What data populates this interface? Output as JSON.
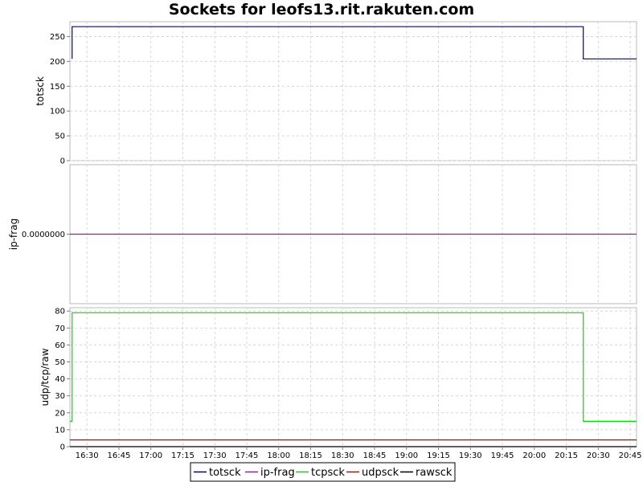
{
  "chart_data": {
    "type": "line",
    "title": "Sockets for leofs13.rit.rakuten.com",
    "x_tick_labels": [
      "16:30",
      "16:45",
      "17:00",
      "17:15",
      "17:30",
      "17:45",
      "18:00",
      "18:15",
      "18:30",
      "18:45",
      "19:00",
      "19:15",
      "19:30",
      "19:45",
      "20:00",
      "20:15",
      "20:30",
      "20:45"
    ],
    "x_range": [
      "16:22",
      "20:48"
    ],
    "grid": true,
    "legend_position": "bottom",
    "panels": [
      {
        "ylabel": "totsck",
        "ylim": [
          0,
          280
        ],
        "y_ticks": [
          0,
          50,
          100,
          150,
          200,
          250
        ],
        "y_tick_labels": [
          "0",
          "50",
          "100",
          "150",
          "200",
          "250"
        ],
        "series": [
          {
            "name": "totsck",
            "color": "#00008b",
            "points": [
              [
                "16:23",
                205
              ],
              [
                "16:23",
                270
              ],
              [
                "20:23",
                270
              ],
              [
                "20:23",
                205
              ],
              [
                "20:48",
                205
              ]
            ]
          }
        ]
      },
      {
        "ylabel": "ip-frag",
        "ylim": [
          -1,
          1
        ],
        "y_ticks": [
          0
        ],
        "y_tick_labels": [
          "0.0000000"
        ],
        "series": [
          {
            "name": "ip-frag",
            "color": "#c000c0",
            "points": [
              [
                "16:22",
                0
              ],
              [
                "20:48",
                0
              ]
            ]
          }
        ]
      },
      {
        "ylabel": "udp/tcp/raw",
        "ylim": [
          0,
          82
        ],
        "y_ticks": [
          0,
          10,
          20,
          30,
          40,
          50,
          60,
          70,
          80
        ],
        "y_tick_labels": [
          "0",
          "10",
          "20",
          "30",
          "40",
          "50",
          "60",
          "70",
          "80"
        ],
        "series": [
          {
            "name": "tcpsck",
            "color": "#00dd00",
            "points": [
              [
                "16:22",
                15
              ],
              [
                "16:23",
                15
              ],
              [
                "16:23",
                79
              ],
              [
                "20:23",
                79
              ],
              [
                "20:23",
                15
              ],
              [
                "20:48",
                15
              ]
            ]
          },
          {
            "name": "udpsck",
            "color": "#cc0000",
            "points": [
              [
                "16:22",
                4
              ],
              [
                "20:48",
                4
              ]
            ]
          },
          {
            "name": "rawsck",
            "color": "#000000",
            "points": [
              [
                "16:22",
                0
              ],
              [
                "20:48",
                0
              ]
            ]
          }
        ]
      }
    ],
    "legend": [
      {
        "name": "totsck",
        "color": "#00008b"
      },
      {
        "name": "ip-frag",
        "color": "#c000c0"
      },
      {
        "name": "tcpsck",
        "color": "#00dd00"
      },
      {
        "name": "udpsck",
        "color": "#cc0000"
      },
      {
        "name": "rawsck",
        "color": "#000000"
      }
    ]
  }
}
